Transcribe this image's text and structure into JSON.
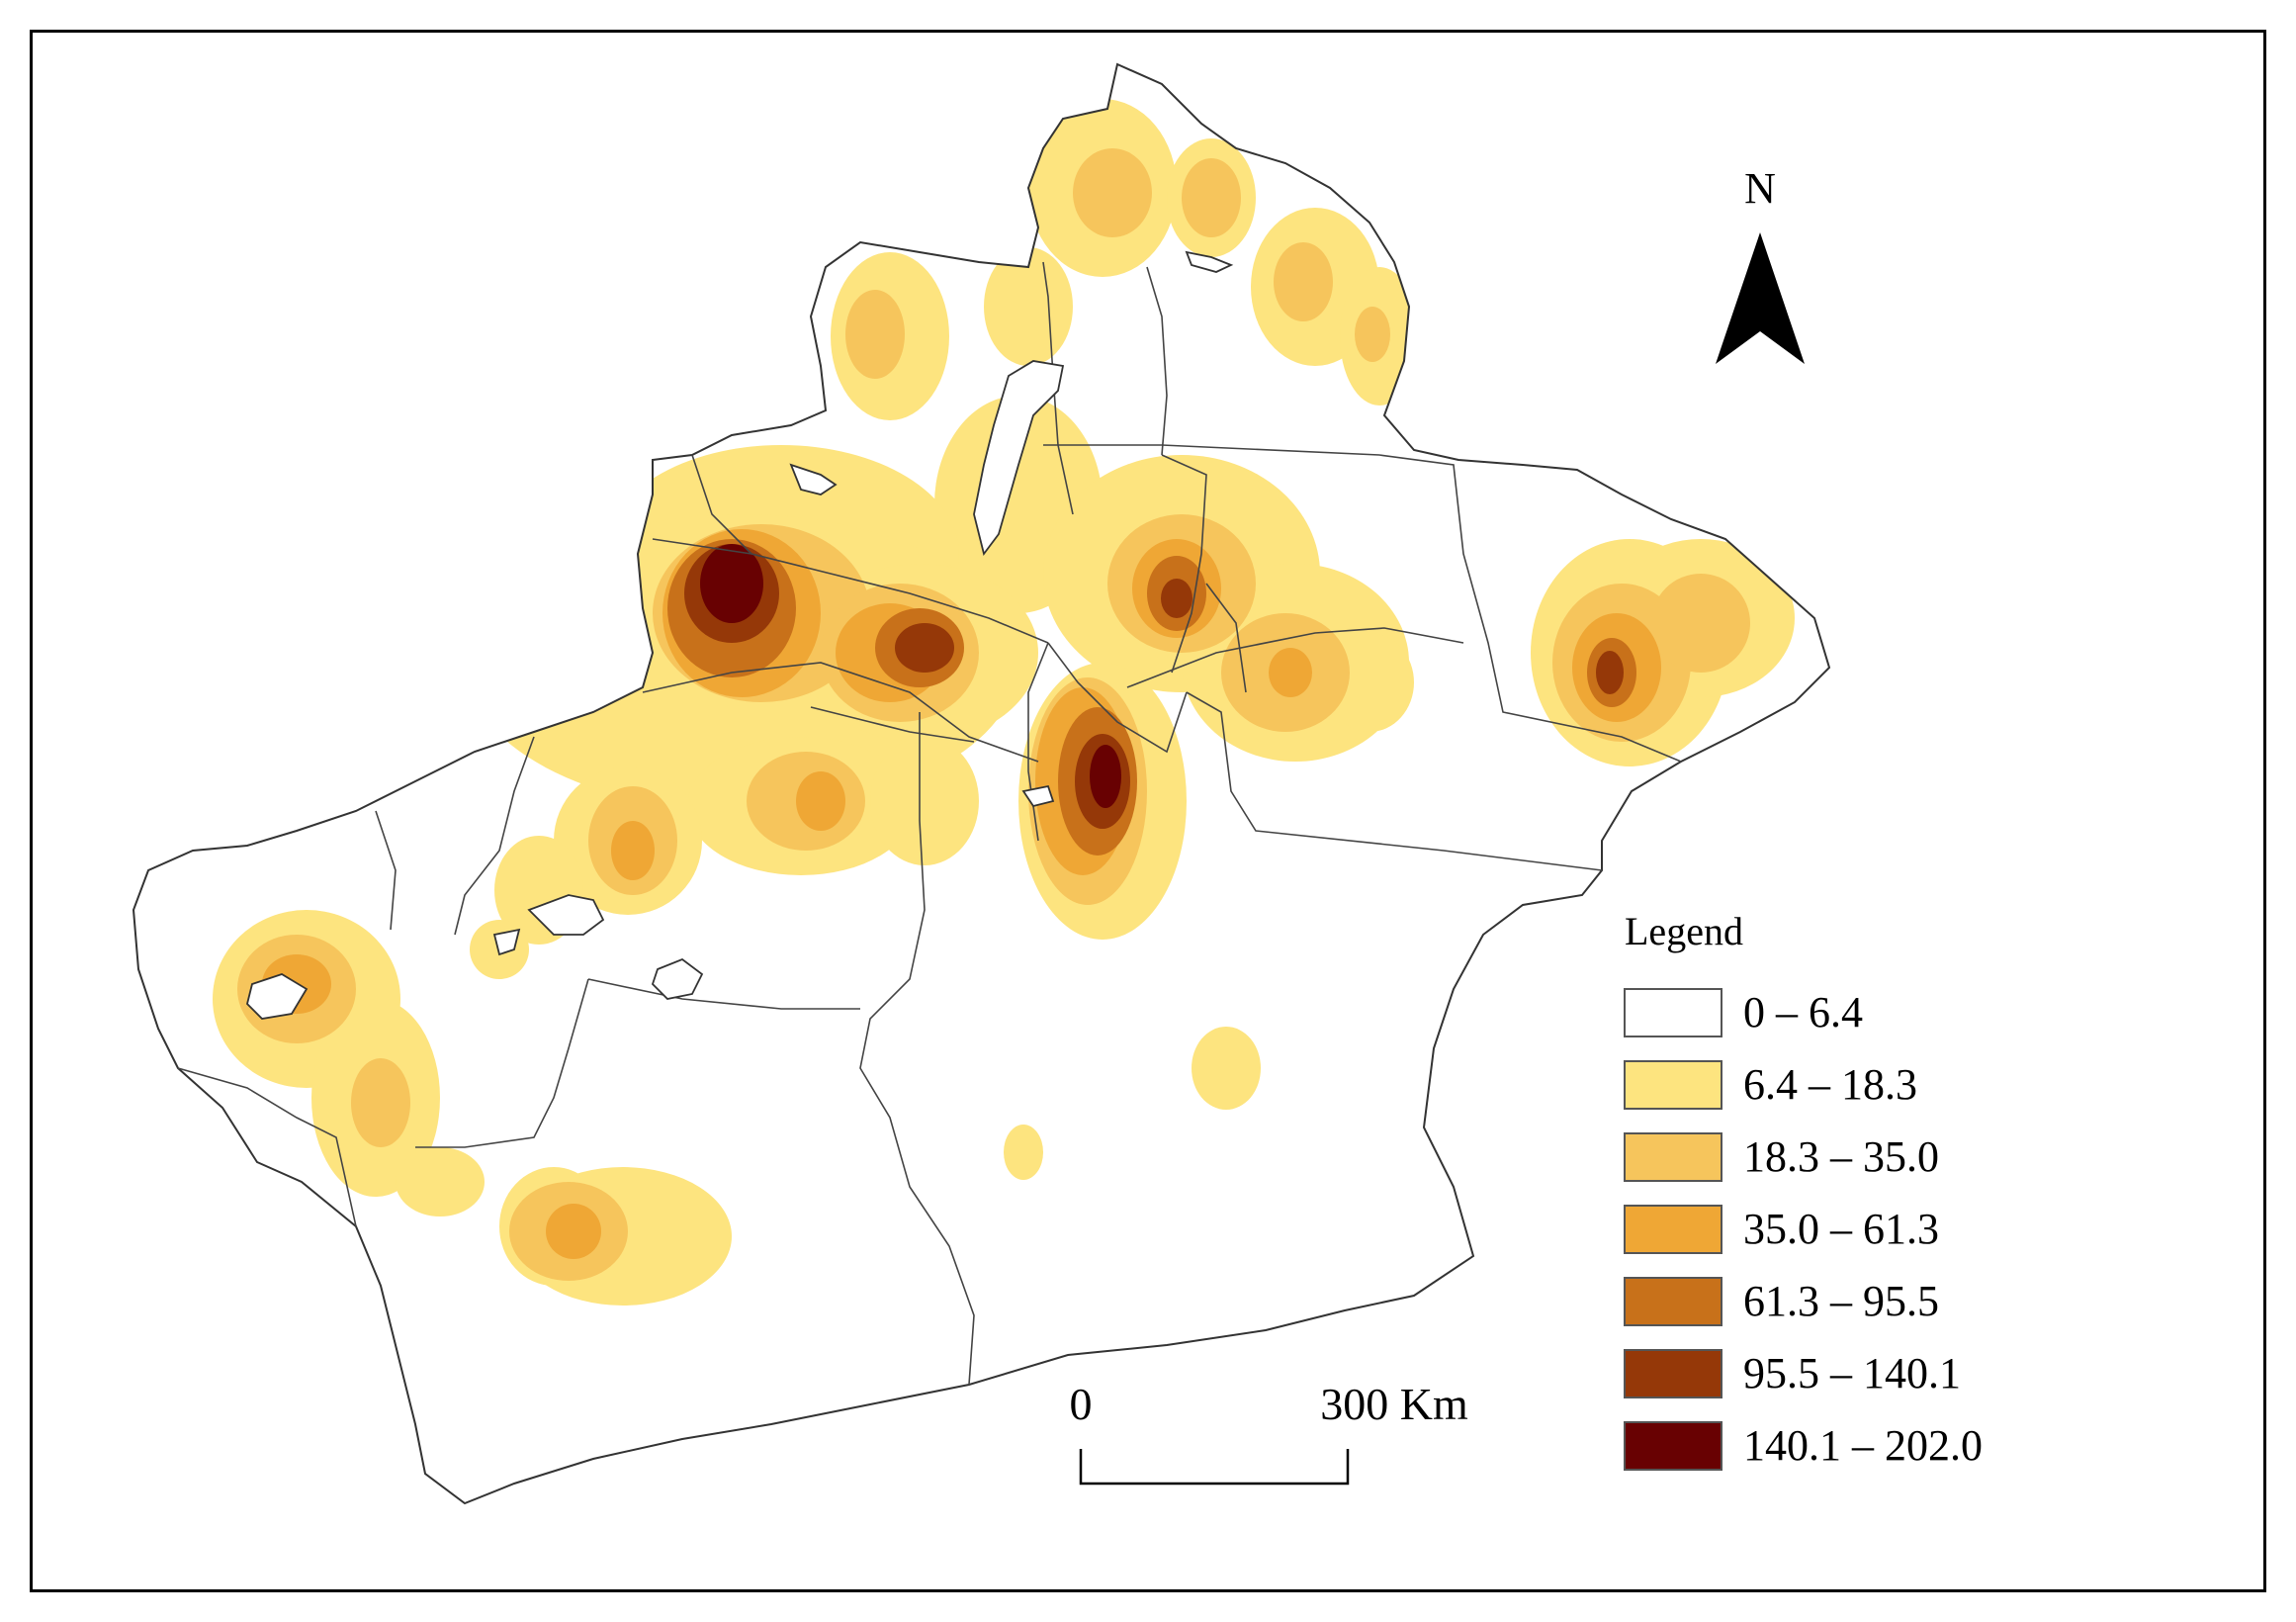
{
  "north_arrow": {
    "label": "N"
  },
  "scale_bar": {
    "start_label": "0",
    "end_label": "300 Km"
  },
  "legend": {
    "title": "Legend",
    "classes": [
      {
        "label": "0 – 6.4",
        "color": "#ffffff"
      },
      {
        "label": "6.4 – 18.3",
        "color": "#fde47f"
      },
      {
        "label": "18.3 – 35.0",
        "color": "#f6c55c"
      },
      {
        "label": "35.0 – 61.3",
        "color": "#efa735"
      },
      {
        "label": "61.3 – 95.5",
        "color": "#c8711a"
      },
      {
        "label": "95.5 – 140.1",
        "color": "#953808"
      },
      {
        "label": "140.1 – 202.0",
        "color": "#680102"
      }
    ]
  }
}
